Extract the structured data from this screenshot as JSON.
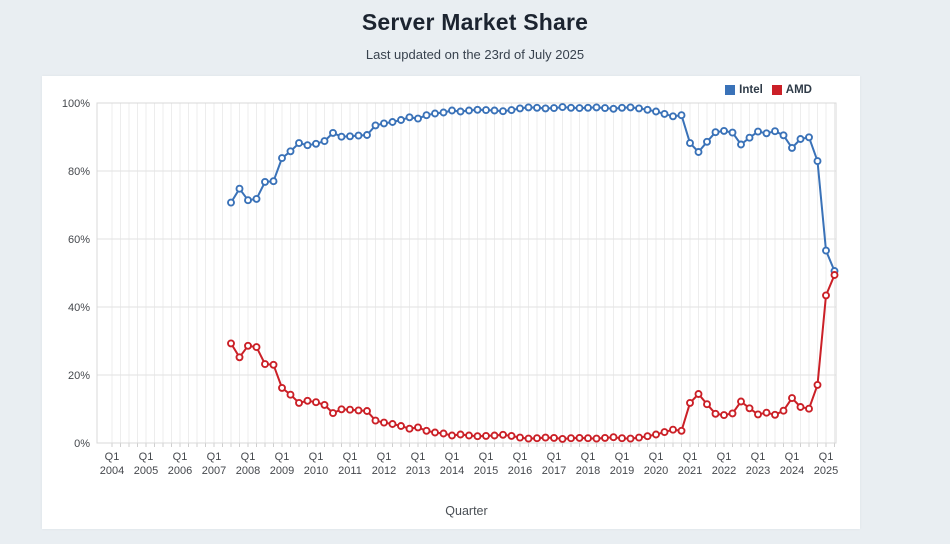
{
  "header": {
    "title": "Server Market Share",
    "subtitle": "Last updated on the 23rd of July 2025"
  },
  "chart_data": {
    "type": "line",
    "title": "Server Market Share",
    "subtitle": "Last updated on the 23rd of July 2025",
    "xlabel": "Quarter",
    "ylabel": "",
    "ylim": [
      0,
      100
    ],
    "y_tick_labels": [
      "0%",
      "20%",
      "40%",
      "60%",
      "80%",
      "100%"
    ],
    "x_tick_quarter": "Q1",
    "x_tick_years": [
      "2004",
      "2005",
      "2006",
      "2007",
      "2008",
      "2009",
      "2010",
      "2011",
      "2012",
      "2013",
      "2014",
      "2015",
      "2016",
      "2017",
      "2018",
      "2019",
      "2020",
      "2021",
      "2022",
      "2023",
      "2024",
      "2025"
    ],
    "x_axis_range": {
      "first_label": "Q1 2004",
      "last_label": "Q1 2025",
      "minor_grid": "quarterly",
      "major_labels": "yearly"
    },
    "grid": true,
    "legend_position": "top-right",
    "quarters": [
      "Q3 2007",
      "Q4 2007",
      "Q1 2008",
      "Q2 2008",
      "Q3 2008",
      "Q4 2008",
      "Q1 2009",
      "Q2 2009",
      "Q3 2009",
      "Q4 2009",
      "Q1 2010",
      "Q2 2010",
      "Q3 2010",
      "Q4 2010",
      "Q1 2011",
      "Q2 2011",
      "Q3 2011",
      "Q4 2011",
      "Q1 2012",
      "Q2 2012",
      "Q3 2012",
      "Q4 2012",
      "Q1 2013",
      "Q2 2013",
      "Q3 2013",
      "Q4 2013",
      "Q1 2014",
      "Q2 2014",
      "Q3 2014",
      "Q4 2014",
      "Q1 2015",
      "Q2 2015",
      "Q3 2015",
      "Q4 2015",
      "Q1 2016",
      "Q2 2016",
      "Q3 2016",
      "Q4 2016",
      "Q1 2017",
      "Q2 2017",
      "Q3 2017",
      "Q4 2017",
      "Q1 2018",
      "Q2 2018",
      "Q3 2018",
      "Q4 2018",
      "Q1 2019",
      "Q2 2019",
      "Q3 2019",
      "Q4 2019",
      "Q1 2020",
      "Q2 2020",
      "Q3 2020",
      "Q4 2020",
      "Q1 2021",
      "Q2 2021",
      "Q3 2021",
      "Q4 2021",
      "Q1 2022",
      "Q2 2022",
      "Q3 2022",
      "Q4 2022",
      "Q1 2023",
      "Q2 2023",
      "Q3 2023",
      "Q4 2023",
      "Q1 2024",
      "Q2 2024",
      "Q3 2024",
      "Q4 2024",
      "Q1 2025",
      "Q2 2025"
    ],
    "series": [
      {
        "name": "Intel",
        "color": "#3a72b8",
        "values": [
          70.7,
          74.8,
          71.4,
          71.8,
          76.8,
          77.0,
          83.8,
          85.8,
          88.2,
          87.6,
          88.0,
          88.8,
          91.2,
          90.1,
          90.2,
          90.4,
          90.6,
          93.4,
          94.0,
          94.4,
          95.0,
          95.8,
          95.4,
          96.4,
          96.9,
          97.2,
          97.8,
          97.5,
          97.8,
          98.0,
          97.9,
          97.8,
          97.6,
          97.9,
          98.4,
          98.7,
          98.6,
          98.4,
          98.5,
          98.8,
          98.6,
          98.5,
          98.6,
          98.7,
          98.5,
          98.3,
          98.6,
          98.7,
          98.4,
          98.0,
          97.5,
          96.8,
          96.1,
          96.4,
          88.2,
          85.6,
          88.6,
          91.4,
          91.8,
          91.3,
          87.8,
          89.8,
          91.6,
          91.1,
          91.7,
          90.5,
          86.8,
          89.4,
          89.9,
          82.9,
          56.6,
          50.6
        ]
      },
      {
        "name": "AMD",
        "color": "#cb2027",
        "values": [
          29.3,
          25.2,
          28.6,
          28.2,
          23.2,
          23.0,
          16.2,
          14.2,
          11.8,
          12.4,
          12.0,
          11.2,
          8.8,
          9.9,
          9.8,
          9.6,
          9.4,
          6.6,
          6.0,
          5.6,
          5.0,
          4.2,
          4.6,
          3.6,
          3.1,
          2.8,
          2.2,
          2.5,
          2.2,
          2.0,
          2.1,
          2.2,
          2.4,
          2.1,
          1.6,
          1.3,
          1.4,
          1.6,
          1.5,
          1.2,
          1.4,
          1.5,
          1.4,
          1.3,
          1.5,
          1.7,
          1.4,
          1.3,
          1.6,
          2.0,
          2.5,
          3.2,
          3.9,
          3.6,
          11.8,
          14.4,
          11.4,
          8.6,
          8.2,
          8.7,
          12.2,
          10.2,
          8.4,
          8.9,
          8.3,
          9.5,
          13.2,
          10.6,
          10.1,
          17.1,
          43.4,
          49.4
        ]
      }
    ],
    "colors": {
      "page_background": "#e9eef2",
      "card_background": "#ffffff",
      "grid_vertical": "#ededed",
      "grid_horizontal": "#e2e2e2",
      "plot_border": "#d8d8d8",
      "tick_text": "#45484d"
    }
  }
}
